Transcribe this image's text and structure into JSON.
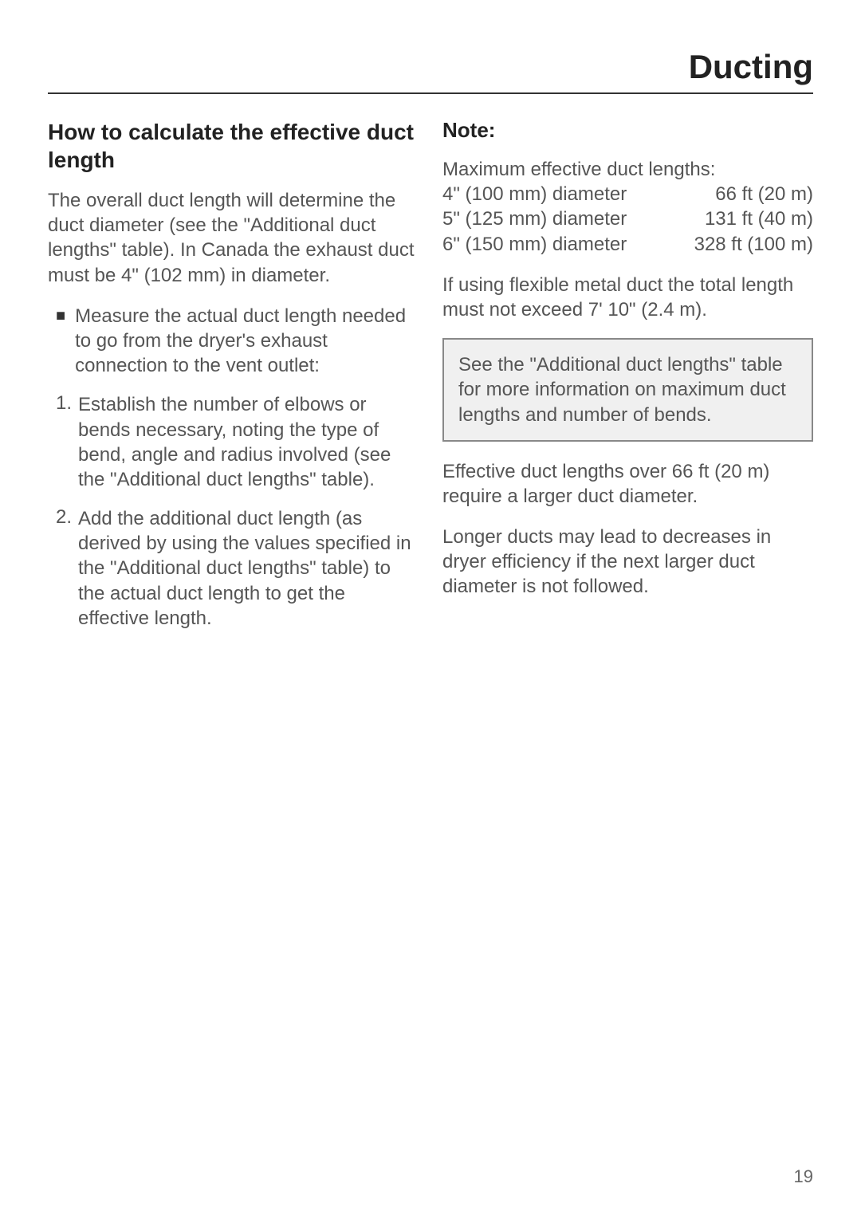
{
  "header": {
    "title": "Ducting"
  },
  "left": {
    "section_title": "How to calculate the effective duct length",
    "intro": "The overall duct length will determine the duct diameter  (see the \"Additional duct lengths\" table). In Canada the exhaust duct must be 4\" (102 mm) in diameter.",
    "bullet": "Measure the actual duct length needed to go from the dryer's exhaust connection to the vent outlet:",
    "step1": "Establish the number of elbows or bends necessary, noting the type of bend, angle and radius involved (see the \"Additional duct lengths\" table).",
    "step2": "Add the additional duct length (as derived by using the values specified in the \"Additional duct lengths\" table) to the actual duct length to get the effective length."
  },
  "right": {
    "note_title": "Note:",
    "max_intro": "Maximum effective duct lengths:",
    "rows": [
      {
        "dia": "4\" (100 mm) diameter",
        "len": "66 ft (20 m)"
      },
      {
        "dia": "5\" (125 mm) diameter",
        "len": "131 ft (40 m)"
      },
      {
        "dia": "6\" (150 mm) diameter",
        "len": "328 ft (100 m)"
      }
    ],
    "flexible": "If using flexible metal duct the total length must not exceed 7' 10\" (2.4 m).",
    "callout": "See the \"Additional duct lengths\" table for more information on maximum duct lengths and number of bends.",
    "over66": "Effective duct lengths over 66 ft (20 m) require a larger duct diameter.",
    "longer": "Longer ducts may lead to decreases in dryer efficiency if the next larger duct diameter is not followed."
  },
  "page_number": "19",
  "colors": {
    "text": "#555555",
    "heading": "#222222",
    "rule": "#333333",
    "callout_bg": "#f0f0f0",
    "callout_border": "#888888"
  },
  "typography": {
    "header_fontsize": 42,
    "section_fontsize": 28,
    "body_fontsize": 24,
    "note_fontsize": 26,
    "pagenum_fontsize": 22
  }
}
